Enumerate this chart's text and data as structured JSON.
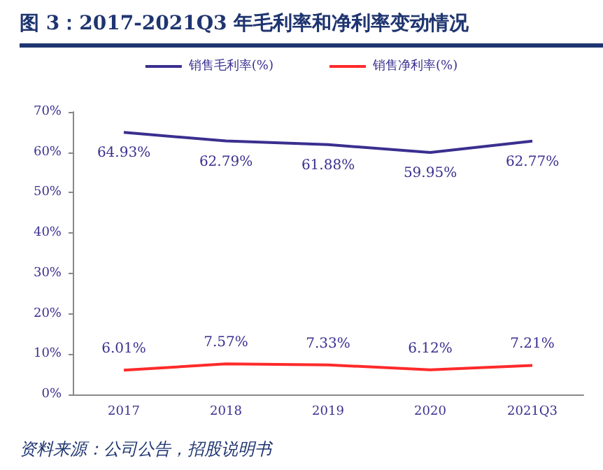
{
  "chart_data": {
    "type": "line",
    "title": "图 3：2017-2021Q3 年毛利率和净利率变动情况",
    "annotations": [
      "资料来源：公司公告，招股说明书"
    ],
    "categories": [
      "2017",
      "2018",
      "2019",
      "2020",
      "2021Q3"
    ],
    "series": [
      {
        "name": "销售毛利率(%)",
        "color": "#3a2f8f",
        "values": [
          64.93,
          62.79,
          61.88,
          59.95,
          62.77
        ],
        "value_labels": [
          "64.93%",
          "62.79%",
          "61.88%",
          "59.95%",
          "62.77%"
        ]
      },
      {
        "name": "销售净利率(%)",
        "color": "#ff2a2a",
        "values": [
          6.01,
          7.57,
          7.33,
          6.12,
          7.21
        ],
        "value_labels": [
          "6.01%",
          "7.57%",
          "7.33%",
          "6.12%",
          "7.21%"
        ]
      }
    ],
    "ylim": [
      0,
      70
    ],
    "yticks": [
      {
        "value": 0,
        "label": "0%"
      },
      {
        "value": 10,
        "label": "10%"
      },
      {
        "value": 20,
        "label": "20%"
      },
      {
        "value": 30,
        "label": "30%"
      },
      {
        "value": 40,
        "label": "40%"
      },
      {
        "value": 50,
        "label": "50%"
      },
      {
        "value": 60,
        "label": "60%"
      },
      {
        "value": 70,
        "label": "70%"
      }
    ],
    "grid": false,
    "legend": "top",
    "marker": "none",
    "line_style": "solid"
  }
}
